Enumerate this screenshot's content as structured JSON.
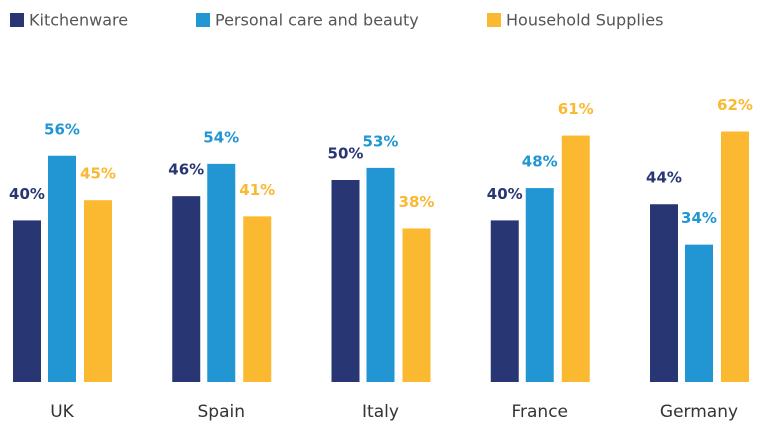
{
  "chart_data": {
    "type": "bar",
    "categories": [
      "UK",
      "Spain",
      "Italy",
      "France",
      "Germany"
    ],
    "series": [
      {
        "name": "Kitchenware",
        "color": "#283673",
        "values": [
          40,
          46,
          50,
          40,
          44
        ],
        "value_labels": [
          "40%",
          "46%",
          "50%",
          "40%",
          "44%"
        ]
      },
      {
        "name": "Personal care and beauty",
        "color": "#2196d3",
        "values": [
          56,
          54,
          53,
          48,
          34
        ],
        "value_labels": [
          "56%",
          "54%",
          "53%",
          "48%",
          "34%"
        ]
      },
      {
        "name": "Household Supplies",
        "color": "#fbb831",
        "values": [
          45,
          41,
          38,
          61,
          62
        ],
        "value_labels": [
          "45%",
          "41%",
          "38%",
          "61%",
          "62%"
        ]
      }
    ],
    "legend": "top-left"
  }
}
